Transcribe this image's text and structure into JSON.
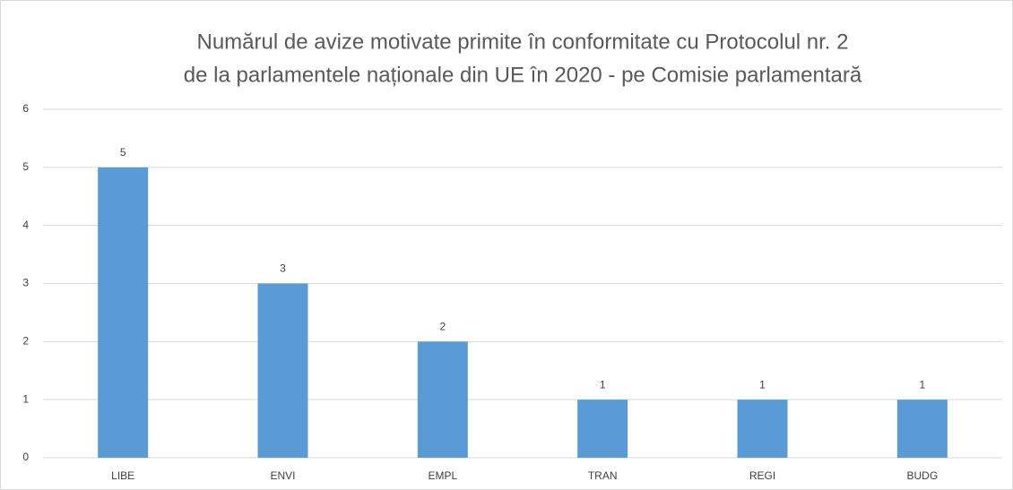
{
  "chart_data": {
    "type": "bar",
    "title": [
      "Numărul de avize motivate primite în conformitate cu Protocolul nr. 2",
      "de la parlamentele naționale din UE în 2020 - pe Comisie parlamentară"
    ],
    "categories": [
      "LIBE",
      "ENVI",
      "EMPL",
      "TRAN",
      "REGI",
      "BUDG"
    ],
    "values": [
      5,
      3,
      2,
      1,
      1,
      1
    ],
    "color": "#5b9bd5",
    "ylim": [
      0,
      6
    ],
    "yticks": [
      0,
      1,
      2,
      3,
      4,
      5,
      6
    ],
    "grid": true,
    "data_labels": true
  }
}
